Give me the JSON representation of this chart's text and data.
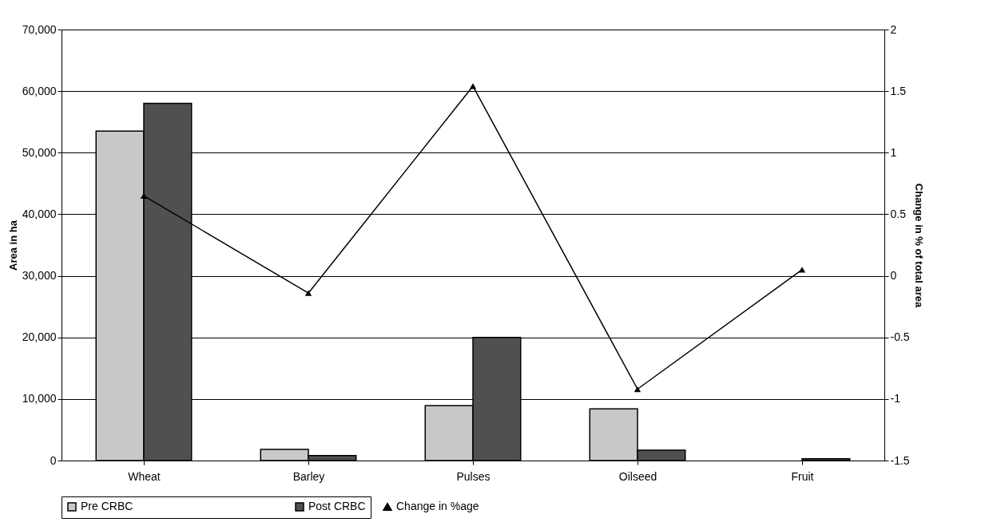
{
  "chart_data": {
    "type": "bar",
    "categories": [
      "Wheat",
      "Barley",
      "Pulses",
      "Oilseed",
      "Fruit"
    ],
    "series": [
      {
        "name": "Pre CRBC",
        "color": "#c8c8c8",
        "values": [
          53500,
          1800,
          8900,
          8400,
          null
        ]
      },
      {
        "name": "Post CRBC",
        "color": "#505050",
        "values": [
          58000,
          800,
          20000,
          1700,
          300
        ]
      },
      {
        "name": "Change in %age",
        "type": "line",
        "axis": "y2",
        "color": "#000000",
        "marker": "triangle",
        "values": [
          0.65,
          -0.14,
          1.54,
          -0.92,
          0.05
        ]
      }
    ],
    "ylabel": "Area in ha",
    "y2label": "Change in % of total area",
    "ylim": [
      0,
      70000
    ],
    "yticks": [
      {
        "value": 0,
        "label": "0"
      },
      {
        "value": 10000,
        "label": "10,000"
      },
      {
        "value": 20000,
        "label": "20,000"
      },
      {
        "value": 30000,
        "label": "30,000"
      },
      {
        "value": 40000,
        "label": "40,000"
      },
      {
        "value": 50000,
        "label": "50,000"
      },
      {
        "value": 60000,
        "label": "60,000"
      },
      {
        "value": 70000,
        "label": "70,000"
      }
    ],
    "y2lim": [
      -1.5,
      2
    ],
    "y2ticks": [
      -1.5,
      -1,
      -0.5,
      0,
      0.5,
      1,
      1.5,
      2
    ],
    "grid": "y",
    "legend": "bottom"
  }
}
